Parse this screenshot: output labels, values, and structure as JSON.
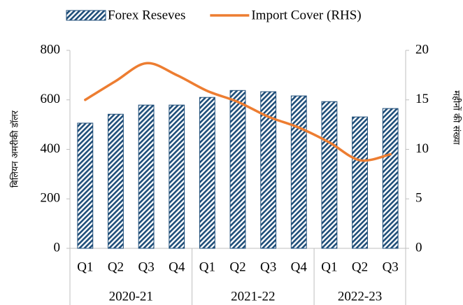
{
  "chart_data": {
    "type": "bar-line",
    "legend": "top",
    "groups": [
      {
        "name": "2020-21",
        "categories": [
          "Q1",
          "Q2",
          "Q3",
          "Q4"
        ]
      },
      {
        "name": "2021-22",
        "categories": [
          "Q1",
          "Q2",
          "Q3",
          "Q4"
        ]
      },
      {
        "name": "2022-23",
        "categories": [
          "Q1",
          "Q2",
          "Q3"
        ]
      }
    ],
    "ylabel": "बिलियन अमरीकी डॉलर",
    "y2label": "महीनों की संख्या",
    "ylim": [
      0,
      800
    ],
    "yticks": [
      0,
      200,
      400,
      600,
      800
    ],
    "y2lim": [
      0,
      20
    ],
    "y2ticks": [
      0,
      5,
      10,
      15,
      20
    ],
    "series": [
      {
        "name": "Forex Reseves",
        "type": "bar",
        "color": "#1f4e79",
        "values": [
          506,
          542,
          579,
          579,
          610,
          638,
          633,
          616,
          593,
          531,
          565
        ]
      },
      {
        "name": "Import Cover (RHS)",
        "type": "line",
        "axis": "y2",
        "color": "#ed7d31",
        "values": [
          15.0,
          16.9,
          18.7,
          17.5,
          15.9,
          14.8,
          13.3,
          12.2,
          10.7,
          8.9,
          9.5
        ]
      }
    ]
  }
}
